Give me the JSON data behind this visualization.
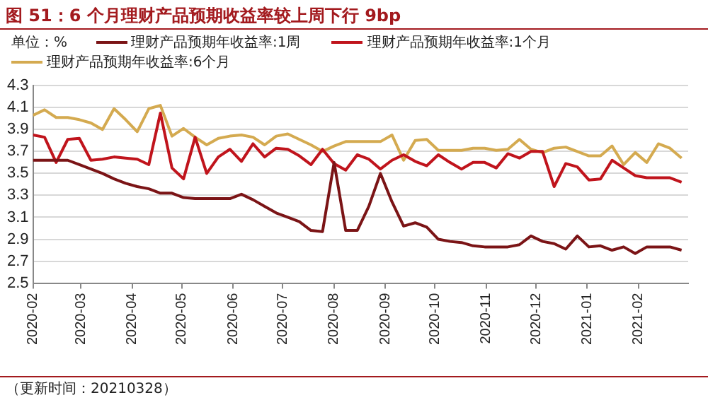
{
  "chart_data": {
    "type": "line",
    "title": "图 51：6 个月理财产品预期收益率较上周下行 9bp",
    "ylabel": "单位：%",
    "annotations": [
      "（更新时间：20210328）"
    ],
    "x": [
      "2020-02-01",
      "2020-02-08",
      "2020-02-15",
      "2020-02-22",
      "2020-02-29",
      "2020-03-07",
      "2020-03-14",
      "2020-03-21",
      "2020-03-28",
      "2020-04-04",
      "2020-04-11",
      "2020-04-18",
      "2020-04-25",
      "2020-05-02",
      "2020-05-09",
      "2020-05-16",
      "2020-05-23",
      "2020-05-30",
      "2020-06-06",
      "2020-06-13",
      "2020-06-20",
      "2020-06-27",
      "2020-07-04",
      "2020-07-11",
      "2020-07-18",
      "2020-07-25",
      "2020-08-01",
      "2020-08-08",
      "2020-08-15",
      "2020-08-22",
      "2020-08-29",
      "2020-09-05",
      "2020-09-12",
      "2020-09-19",
      "2020-09-26",
      "2020-10-03",
      "2020-10-10",
      "2020-10-17",
      "2020-10-24",
      "2020-10-31",
      "2020-11-07",
      "2020-11-14",
      "2020-11-21",
      "2020-11-28",
      "2020-12-05",
      "2020-12-12",
      "2020-12-19",
      "2020-12-26",
      "2021-01-02",
      "2021-01-09",
      "2021-01-16",
      "2021-01-23",
      "2021-01-30",
      "2021-02-06",
      "2021-02-13",
      "2021-02-20",
      "2021-02-27"
    ],
    "series": [
      {
        "name": "理财产品预期年收益率:1周",
        "color": "#7b1416",
        "values": [
          3.62,
          3.62,
          3.62,
          3.62,
          3.58,
          3.54,
          3.5,
          3.45,
          3.41,
          3.38,
          3.36,
          3.32,
          3.32,
          3.28,
          3.27,
          3.27,
          3.27,
          3.27,
          3.31,
          3.26,
          3.2,
          3.14,
          3.1,
          3.06,
          2.98,
          2.97,
          3.6,
          2.98,
          2.98,
          3.2,
          3.5,
          3.24,
          3.02,
          3.05,
          3.01,
          2.9,
          2.88,
          2.87,
          2.84,
          2.83,
          2.83,
          2.83,
          2.85,
          2.93,
          2.88,
          2.86,
          2.81,
          2.93,
          2.83,
          2.84,
          2.8,
          2.83,
          2.77,
          2.83,
          2.83,
          2.83,
          2.8
        ]
      },
      {
        "name": "理财产品预期年收益率:1个月",
        "color": "#c0141c",
        "values": [
          3.85,
          3.83,
          3.6,
          3.81,
          3.82,
          3.62,
          3.63,
          3.65,
          3.64,
          3.63,
          3.58,
          4.05,
          3.55,
          3.45,
          3.83,
          3.5,
          3.65,
          3.72,
          3.61,
          3.77,
          3.65,
          3.73,
          3.72,
          3.66,
          3.58,
          3.72,
          3.59,
          3.53,
          3.67,
          3.63,
          3.54,
          3.62,
          3.67,
          3.61,
          3.57,
          3.67,
          3.6,
          3.54,
          3.6,
          3.6,
          3.55,
          3.68,
          3.64,
          3.7,
          3.7,
          3.38,
          3.59,
          3.56,
          3.44,
          3.45,
          3.62,
          3.55,
          3.48,
          3.46,
          3.46,
          3.46,
          3.42
        ]
      },
      {
        "name": "理财产品预期年收益率:6个月",
        "color": "#d4aa50",
        "values": [
          4.03,
          4.08,
          4.01,
          4.01,
          3.99,
          3.96,
          3.9,
          4.09,
          3.99,
          3.88,
          4.09,
          4.12,
          3.84,
          3.91,
          3.83,
          3.76,
          3.82,
          3.84,
          3.85,
          3.83,
          3.76,
          3.84,
          3.86,
          3.81,
          3.76,
          3.7,
          3.75,
          3.79,
          3.79,
          3.79,
          3.79,
          3.85,
          3.62,
          3.8,
          3.81,
          3.71,
          3.71,
          3.71,
          3.73,
          3.73,
          3.71,
          3.72,
          3.81,
          3.72,
          3.69,
          3.73,
          3.74,
          3.7,
          3.66,
          3.66,
          3.75,
          3.58,
          3.69,
          3.6,
          3.77,
          3.73,
          3.64
        ]
      }
    ],
    "xlim": [
      "2020-02",
      "2021-03-03"
    ],
    "xticks": [
      "2020-02",
      "2020-03",
      "2020-04",
      "2020-05",
      "2020-06",
      "2020-07",
      "2020-08",
      "2020-09",
      "2020-10",
      "2020-11",
      "2020-12",
      "2021-01",
      "2021-02"
    ],
    "ylim": [
      2.5,
      4.3
    ],
    "yticks": [
      2.5,
      2.7,
      2.9,
      3.1,
      3.3,
      3.5,
      3.7,
      3.9,
      4.1,
      4.3
    ],
    "grid": "y",
    "legend": "top left",
    "marker": "none",
    "line_style": "solid"
  }
}
